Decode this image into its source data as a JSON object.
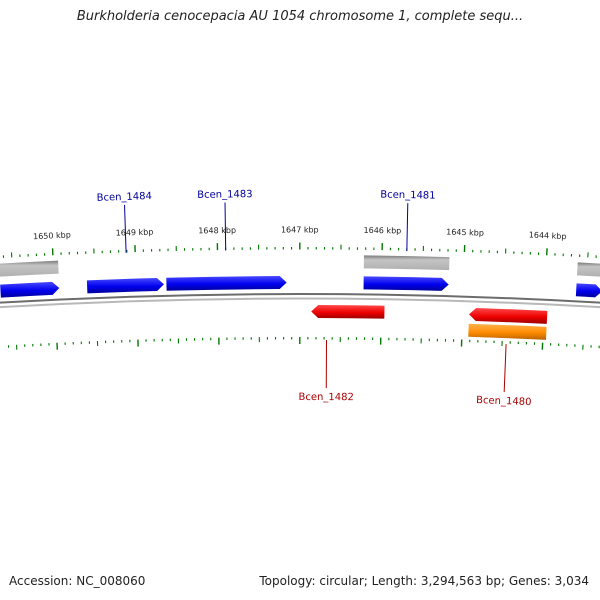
{
  "title": "Burkholderia cenocepacia AU 1054 chromosome 1, complete sequ...",
  "footer": {
    "accession": "Accession: NC_008060",
    "summary": "Topology: circular; Length: 3,294,563 bp; Genes: 3,034"
  },
  "colors": {
    "forward_cds": "#0000ee",
    "reverse_cds": "#ee0000",
    "reverse_other": "#ff8c00",
    "forward_gene_bg": "#b0b0b0",
    "backbone": "#888888",
    "ticks": "#007700",
    "forward_label": "#000099",
    "reverse_label": "#aa0000"
  },
  "scale": {
    "labels": [
      "1650 kbp",
      "1649 kbp",
      "1648 kbp",
      "1647 kbp",
      "1646 kbp",
      "1645 kbp",
      "1644 kbp"
    ],
    "kbp": [
      1650,
      1649,
      1648,
      1647,
      1646,
      1645,
      1644
    ]
  },
  "features": {
    "forward_genes": [
      {
        "start": 1650.66,
        "end": 1649.94
      },
      {
        "start": 1646.22,
        "end": 1645.18
      },
      {
        "start": 1643.62,
        "end": 1643.3
      }
    ],
    "forward_cds": [
      {
        "start": 1650.66,
        "end": 1649.94
      },
      {
        "start": 1649.6,
        "end": 1648.66
      },
      {
        "start": 1648.63,
        "end": 1647.16
      },
      {
        "start": 1646.22,
        "end": 1645.18
      },
      {
        "start": 1643.62,
        "end": 1643.3
      }
    ],
    "reverse_cds": [
      {
        "start": 1646.86,
        "end": 1645.96
      },
      {
        "start": 1644.92,
        "end": 1643.96
      }
    ],
    "reverse_other": [
      {
        "start": 1644.92,
        "end": 1643.96
      }
    ]
  },
  "gene_labels": [
    {
      "name": "Bcen_1484",
      "strand": "forward",
      "kbp": 1649.11
    },
    {
      "name": "Bcen_1483",
      "strand": "forward",
      "kbp": 1647.9
    },
    {
      "name": "Bcen_1481",
      "strand": "forward",
      "kbp": 1645.7
    },
    {
      "name": "Bcen_1482",
      "strand": "reverse",
      "kbp": 1646.67
    },
    {
      "name": "Bcen_1480",
      "strand": "reverse",
      "kbp": 1644.45
    }
  ]
}
